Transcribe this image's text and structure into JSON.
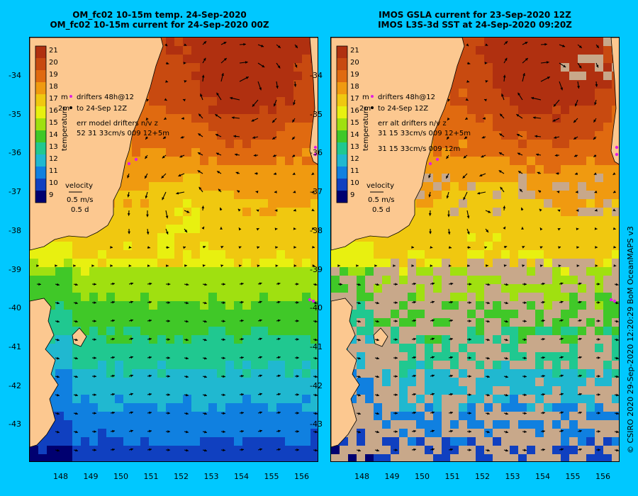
{
  "left_panel": {
    "title_line1": "OM_fc02 10-15m temp. 24-Sep-2020",
    "title_line2": "OM_fc02 10-15m current for 24-Sep-2020 00Z",
    "legend": {
      "drifters_line1": "drifters 48h@12",
      "drifters_line2": "to 24-Sep 12Z",
      "depth_tag1": "m",
      "depth_tag2": "2m",
      "err_line1": "err model drifters n/v z",
      "err_line2": "52 31 33cm/s 009 12+5m",
      "velocity_label": "velocity",
      "velocity_speed": "0.5 m/s",
      "velocity_time": "0.5 d"
    }
  },
  "right_panel": {
    "title_line1": "IMOS GSLA current for 23-Sep-2020 12Z",
    "title_line2": "IMOS L3S-3d SST at 24-Sep-2020 09:20Z",
    "legend": {
      "drifters_line1": "drifters 48h@12",
      "drifters_line2": "to 24-Sep 12Z",
      "depth_tag1": "m",
      "depth_tag2": "2m",
      "err_line1": "err alt drifters n/v z",
      "err_line2": "31 15 33cm/s 009 12+5m",
      "err_line3": "31 15 33cm/s 009 12m",
      "velocity_label": "velocity",
      "velocity_speed": "0.5 m/s",
      "velocity_time": "0.5 d"
    }
  },
  "colorbar": {
    "label": "temperature",
    "ticks": [
      "21",
      "20",
      "19",
      "18",
      "17",
      "16",
      "15",
      "14",
      "13",
      "12",
      "11",
      "10",
      "9"
    ],
    "colors": [
      "#b03010",
      "#c84a10",
      "#e06a10",
      "#f09a10",
      "#f0c810",
      "#e8f010",
      "#a0e010",
      "#40c828",
      "#20c890",
      "#20b8d0",
      "#1080e0",
      "#1040c0",
      "#000070"
    ]
  },
  "map": {
    "lat_ticks": [
      "-34",
      "-35",
      "-36",
      "-37",
      "-38",
      "-39",
      "-40",
      "-41",
      "-42",
      "-43"
    ],
    "lon_ticks": [
      "148",
      "149",
      "150",
      "151",
      "152",
      "153",
      "154",
      "155",
      "156"
    ],
    "land_color": "#fcc890",
    "missing_color": "#c8a88a"
  },
  "credit": "© CSIRO 2020   29-Sep-2020 12:20:29 BoM OceanMAPS v3"
}
